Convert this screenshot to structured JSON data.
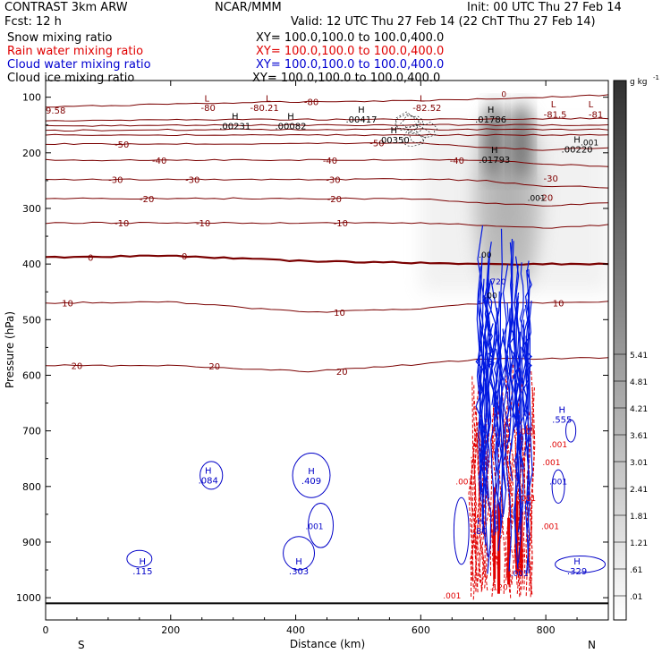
{
  "header": {
    "left_title": "CONTRAST  3km ARW",
    "fcst": "Fcst:    12 h",
    "center_title": "NCAR/MMM",
    "init": "Init: 00 UTC Thu 27 Feb 14",
    "valid": "Valid: 12 UTC Thu 27 Feb 14 (22 ChT Thu 27 Feb 14)"
  },
  "fields": [
    {
      "name": "Snow mixing ratio",
      "xy": "XY=  100.0,100.0 to 100.0,400.0",
      "color": "#000000"
    },
    {
      "name": "Rain water mixing ratio",
      "xy": "XY=  100.0,100.0 to 100.0,400.0",
      "color": "#e00000"
    },
    {
      "name": "Cloud water mixing ratio",
      "xy": "XY=  100.0,100.0 to 100.0,400.0",
      "color": "#0000d0"
    },
    {
      "name": "Cloud ice mixing ratio",
      "xy": "XY=  100.0,100.0 to 100.0,400.0",
      "color": "#000000"
    }
  ],
  "chart_data": {
    "type": "contour",
    "xlabel": "Distance (km)",
    "ylabel": "Pressure (hPa)",
    "xlim": [
      0,
      900
    ],
    "ylim": [
      1040,
      70
    ],
    "x_ticks": [
      0,
      200,
      400,
      600,
      800
    ],
    "y_ticks": [
      100,
      200,
      300,
      400,
      500,
      600,
      700,
      800,
      900,
      1000
    ],
    "x_end_labels": {
      "left": "S",
      "right": "N"
    },
    "colorbar": {
      "unit": "g kg",
      "unit_exp": "-1",
      "levels": [
        ".01",
        ".61",
        "1.21",
        "1.81",
        "2.41",
        "3.01",
        "3.61",
        "4.21",
        "4.81",
        "5.41"
      ]
    },
    "temperature_contours": [
      {
        "value": -80,
        "points": [
          [
            0,
            118
          ],
          [
            200,
            112
          ],
          [
            420,
            108
          ],
          [
            600,
            106
          ],
          [
            800,
            100
          ],
          [
            900,
            96
          ]
        ]
      },
      {
        "value": -75,
        "points": [
          [
            0,
            142
          ],
          [
            300,
            140
          ],
          [
            600,
            140
          ],
          [
            900,
            138
          ]
        ]
      },
      {
        "value": -70,
        "points": [
          [
            0,
            152
          ],
          [
            300,
            150
          ],
          [
            600,
            150
          ],
          [
            900,
            150
          ]
        ]
      },
      {
        "value": -65,
        "points": [
          [
            0,
            160
          ],
          [
            300,
            158
          ],
          [
            600,
            158
          ],
          [
            900,
            158
          ]
        ]
      },
      {
        "value": -60,
        "points": [
          [
            0,
            168
          ],
          [
            300,
            168
          ],
          [
            600,
            168
          ],
          [
            900,
            168
          ]
        ]
      },
      {
        "value": -50,
        "points": [
          [
            0,
            184
          ],
          [
            200,
            184
          ],
          [
            430,
            183
          ],
          [
            600,
            182
          ],
          [
            700,
            190
          ],
          [
            800,
            195
          ],
          [
            900,
            190
          ]
        ]
      },
      {
        "value": -40,
        "points": [
          [
            0,
            213
          ],
          [
            200,
            213
          ],
          [
            420,
            213
          ],
          [
            600,
            212
          ],
          [
            700,
            214
          ],
          [
            800,
            220
          ],
          [
            900,
            225
          ]
        ]
      },
      {
        "value": -30,
        "points": [
          [
            0,
            248
          ],
          [
            200,
            248
          ],
          [
            420,
            248
          ],
          [
            600,
            247
          ],
          [
            700,
            250
          ],
          [
            800,
            260
          ],
          [
            900,
            262
          ]
        ]
      },
      {
        "value": -20,
        "points": [
          [
            0,
            282
          ],
          [
            200,
            282
          ],
          [
            420,
            282
          ],
          [
            600,
            283
          ],
          [
            700,
            290
          ],
          [
            800,
            295
          ],
          [
            900,
            290
          ]
        ]
      },
      {
        "value": -10,
        "points": [
          [
            0,
            326
          ],
          [
            200,
            326
          ],
          [
            420,
            326
          ],
          [
            600,
            326
          ],
          [
            700,
            330
          ],
          [
            800,
            335
          ],
          [
            900,
            330
          ]
        ]
      },
      {
        "value": 0,
        "points": [
          [
            0,
            388
          ],
          [
            200,
            385
          ],
          [
            420,
            395
          ],
          [
            600,
            398
          ],
          [
            700,
            400
          ],
          [
            800,
            400
          ],
          [
            900,
            400
          ]
        ]
      },
      {
        "value": 10,
        "points": [
          [
            0,
            470
          ],
          [
            200,
            468
          ],
          [
            420,
            487
          ],
          [
            600,
            480
          ],
          [
            700,
            470
          ],
          [
            800,
            470
          ],
          [
            900,
            468
          ]
        ]
      },
      {
        "value": 20,
        "points": [
          [
            0,
            582
          ],
          [
            200,
            583
          ],
          [
            420,
            593
          ],
          [
            600,
            580
          ],
          [
            700,
            570
          ],
          [
            800,
            570
          ],
          [
            900,
            568
          ]
        ]
      }
    ],
    "contour_labels": [
      {
        "text": "-80",
        "x": 260,
        "p": 118,
        "color": "#800000"
      },
      {
        "text": "-80.21",
        "x": 350,
        "p": 118,
        "color": "#800000"
      },
      {
        "text": "-80",
        "x": 425,
        "p": 108,
        "color": "#800000"
      },
      {
        "text": "-82.52",
        "x": 610,
        "p": 118,
        "color": "#800000"
      },
      {
        "text": "-81.5",
        "x": 815,
        "p": 130,
        "color": "#800000"
      },
      {
        "text": "-81",
        "x": 880,
        "p": 130,
        "color": "#800000"
      },
      {
        "text": "-50",
        "x": 122,
        "p": 184,
        "color": "#800000"
      },
      {
        "text": "-50",
        "x": 530,
        "p": 182,
        "color": "#800000"
      },
      {
        "text": "-40",
        "x": 182,
        "p": 213,
        "color": "#800000"
      },
      {
        "text": "-40",
        "x": 455,
        "p": 213,
        "color": "#800000"
      },
      {
        "text": "-40",
        "x": 658,
        "p": 213,
        "color": "#800000"
      },
      {
        "text": "-30",
        "x": 112,
        "p": 248,
        "color": "#800000"
      },
      {
        "text": "-30",
        "x": 235,
        "p": 248,
        "color": "#800000"
      },
      {
        "text": "-30",
        "x": 460,
        "p": 248,
        "color": "#800000"
      },
      {
        "text": "-30",
        "x": 808,
        "p": 245,
        "color": "#800000"
      },
      {
        "text": "-20",
        "x": 162,
        "p": 282,
        "color": "#800000"
      },
      {
        "text": "-20",
        "x": 462,
        "p": 282,
        "color": "#800000"
      },
      {
        "text": "-20",
        "x": 800,
        "p": 280,
        "color": "#800000"
      },
      {
        "text": "-10",
        "x": 122,
        "p": 326,
        "color": "#800000"
      },
      {
        "text": "-10",
        "x": 252,
        "p": 326,
        "color": "#800000"
      },
      {
        "text": "-10",
        "x": 472,
        "p": 326,
        "color": "#800000"
      },
      {
        "text": "0",
        "x": 72,
        "p": 388,
        "color": "#800000"
      },
      {
        "text": "0",
        "x": 222,
        "p": 385,
        "color": "#800000"
      },
      {
        "text": "10",
        "x": 35,
        "p": 470,
        "color": "#800000"
      },
      {
        "text": "10",
        "x": 470,
        "p": 487,
        "color": "#800000"
      },
      {
        "text": "10",
        "x": 820,
        "p": 470,
        "color": "#800000"
      },
      {
        "text": "20",
        "x": 50,
        "p": 582,
        "color": "#800000"
      },
      {
        "text": "20",
        "x": 270,
        "p": 583,
        "color": "#800000"
      },
      {
        "text": "20",
        "x": 474,
        "p": 593,
        "color": "#800000"
      },
      {
        "text": "9.58",
        "x": 16,
        "p": 123,
        "color": "#800000"
      }
    ],
    "extrema": [
      {
        "type": "L",
        "value": "",
        "x": 258,
        "p": 108,
        "color": "#800000"
      },
      {
        "type": "L",
        "value": "",
        "x": 356,
        "p": 108,
        "color": "#800000"
      },
      {
        "type": "L",
        "value": "",
        "x": 602,
        "p": 108,
        "color": "#800000"
      },
      {
        "type": "L",
        "value": "",
        "x": 812,
        "p": 118,
        "color": "#800000"
      },
      {
        "type": "L",
        "value": "",
        "x": 872,
        "p": 118,
        "color": "#800000"
      },
      {
        "type": "H",
        "value": ".00231",
        "x": 303,
        "p": 140,
        "color": "#000000"
      },
      {
        "type": "H",
        "value": ".00082",
        "x": 392,
        "p": 140,
        "color": "#000000"
      },
      {
        "type": "H",
        "value": ".00417",
        "x": 505,
        "p": 128,
        "color": "#000000"
      },
      {
        "type": "H",
        "value": ".00350",
        "x": 557,
        "p": 165,
        "color": "#000000"
      },
      {
        "type": "H",
        "value": ".01786",
        "x": 712,
        "p": 128,
        "color": "#000000"
      },
      {
        "type": "H",
        "value": ".01793",
        "x": 718,
        "p": 200,
        "color": "#000000"
      },
      {
        "type": "H",
        "value": ".00220",
        "x": 850,
        "p": 182,
        "color": "#000000"
      },
      {
        "type": "H",
        "value": ".084",
        "x": 260,
        "p": 777,
        "color": "#0000c8"
      },
      {
        "type": "H",
        "value": ".409",
        "x": 425,
        "p": 778,
        "color": "#0000c8"
      },
      {
        "type": "H",
        "value": ".115",
        "x": 155,
        "p": 940,
        "color": "#0000c8"
      },
      {
        "type": "H",
        "value": ".303",
        "x": 405,
        "p": 940,
        "color": "#0000c8"
      },
      {
        "type": "H",
        "value": ".555",
        "x": 826,
        "p": 668,
        "color": "#0000c8"
      },
      {
        "type": "H",
        "value": ".329",
        "x": 850,
        "p": 940,
        "color": "#0000c8"
      },
      {
        "type": "H",
        "value": ".80",
        "x": 695,
        "p": 868,
        "color": "#0000c8"
      }
    ],
    "small_labels": [
      {
        "text": "0",
        "x": 733,
        "p": 93,
        "color": "#800000"
      },
      {
        "text": ".001",
        "x": 870,
        "p": 180,
        "color": "#000000"
      },
      {
        "text": ".001",
        "x": 785,
        "p": 280,
        "color": "#000000"
      },
      {
        "text": ".001",
        "x": 650,
        "p": 995,
        "color": "#e00000"
      },
      {
        "text": ".001",
        "x": 807,
        "p": 870,
        "color": "#e00000"
      },
      {
        "text": ".001",
        "x": 809,
        "p": 755,
        "color": "#e00000"
      },
      {
        "text": ".001",
        "x": 430,
        "p": 870,
        "color": "#0000c8"
      },
      {
        "text": ".001",
        "x": 820,
        "p": 790,
        "color": "#0000c8"
      },
      {
        "text": ".001",
        "x": 758,
        "p": 955,
        "color": "#0000c8"
      },
      {
        "text": ".001",
        "x": 670,
        "p": 790,
        "color": "#e00000"
      },
      {
        "text": ".001",
        "x": 770,
        "p": 700,
        "color": "#e00000"
      },
      {
        "text": ".001",
        "x": 820,
        "p": 723,
        "color": "#e00000"
      },
      {
        "text": ".001",
        "x": 770,
        "p": 820,
        "color": "#e00000"
      },
      {
        "text": ".120",
        "x": 725,
        "p": 980,
        "color": "#e00000"
      },
      {
        "text": ".720",
        "x": 722,
        "p": 430,
        "color": "#0000c8"
      },
      {
        "text": ".00",
        "x": 703,
        "p": 382,
        "color": "#000000"
      },
      {
        "text": ".00",
        "x": 712,
        "p": 455,
        "color": "#000000"
      }
    ],
    "snow_plumes": [
      {
        "x": 718,
        "p_top": 120,
        "p_bottom": 440,
        "max": 5.41
      },
      {
        "x": 760,
        "p_top": 120,
        "p_bottom": 440,
        "max": 5.41
      }
    ]
  }
}
